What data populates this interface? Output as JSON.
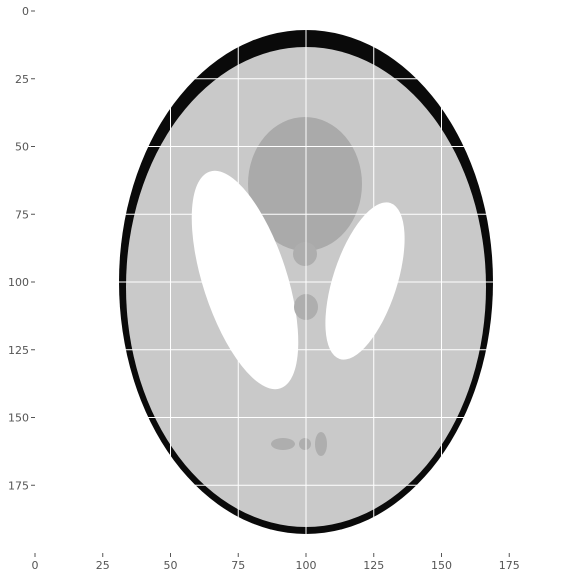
{
  "image": {
    "description_shown": "Shepp-Logan phantom",
    "x_ticks": [
      0,
      25,
      50,
      75,
      100,
      125,
      150,
      175
    ],
    "y_ticks": [
      0,
      25,
      50,
      75,
      100,
      125,
      150,
      175
    ],
    "x_range": [
      0,
      199
    ],
    "y_range": [
      0,
      199
    ],
    "grid": true,
    "colors": {
      "background": "#ffffff",
      "outer_shell": "#0a0a0a",
      "brain": "#c9c9c9",
      "large_central": "#aaaaaa",
      "bright_ellipses": "#ffffff",
      "small_blobs": "#aeaeae",
      "grid_line": "#ffffff",
      "tick_text": "#555555"
    }
  }
}
